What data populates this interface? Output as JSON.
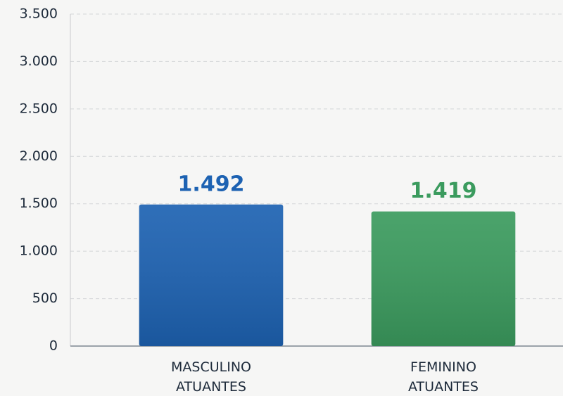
{
  "chart_data": {
    "type": "bar",
    "categories": [
      "MASCULINO ATUANTES",
      "FEMININO ATUANTES"
    ],
    "values": [
      1492,
      1419
    ],
    "value_labels": [
      "1.492",
      "1.419"
    ],
    "colors": [
      "#1d62b2",
      "#3b9b5e"
    ],
    "ylim": [
      0,
      3500
    ],
    "yticks": [
      0,
      500,
      {
        "value": 1000,
        "label": "1.000"
      },
      {
        "value": 1500,
        "label": "1.500"
      },
      {
        "value": 2000,
        "label": "2.000"
      },
      {
        "value": 2500,
        "label": "2.500"
      },
      {
        "value": 3000,
        "label": "3.000"
      },
      {
        "value": 3500,
        "label": "3.500"
      }
    ],
    "grid": true
  }
}
